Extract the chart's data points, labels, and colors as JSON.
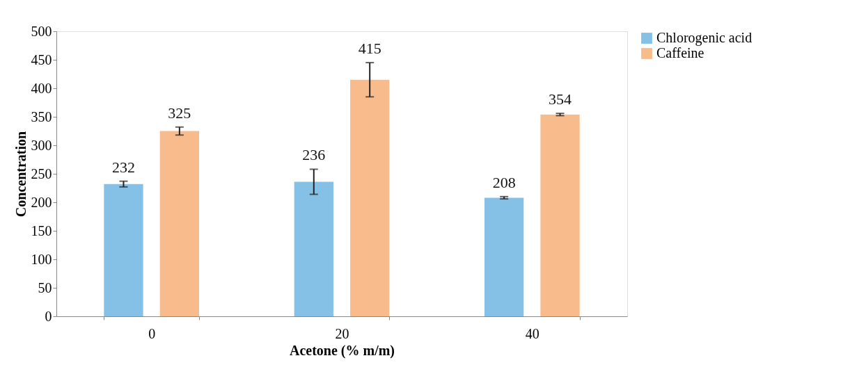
{
  "chart_data": {
    "type": "bar",
    "xlabel": "Acetone (% m/m)",
    "ylabel": "Concentration",
    "categories": [
      "0",
      "20",
      "40"
    ],
    "series": [
      {
        "name": "Chlorogenic acid",
        "color": "#85c1e6",
        "values": [
          232,
          236,
          208
        ],
        "errors": [
          5,
          22,
          2
        ]
      },
      {
        "name": "Caffeine",
        "color": "#f8bb8c",
        "values": [
          325,
          415,
          354
        ],
        "errors": [
          7,
          30,
          2
        ]
      }
    ],
    "ylim": [
      0,
      500
    ],
    "yticks": [
      0,
      50,
      100,
      150,
      200,
      250,
      300,
      350,
      400,
      450,
      500
    ],
    "data_labels": true,
    "grid": false,
    "legend": "right"
  }
}
